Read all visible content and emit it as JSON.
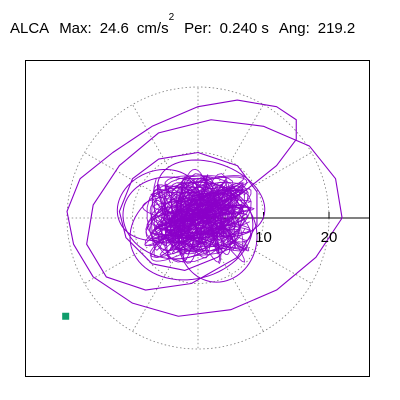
{
  "header": {
    "station": "ALCA",
    "max_label": "Max:",
    "max_value": "24.6",
    "max_unit": "cm/s",
    "max_unit_power": "2",
    "period_label": "Per:",
    "period_value": "0.240 s",
    "angle_label": "Ang:",
    "angle_value": "219.2"
  },
  "colors": {
    "trace": "#8b00c9",
    "end_marker": "#0f9d6b",
    "grid": "#7a7a7a",
    "frame": "#000000"
  },
  "chart_data": {
    "type": "scatter",
    "title": "",
    "xlabel": "",
    "ylabel": "",
    "ticks": [
      10,
      20
    ],
    "grid": "polar-rings",
    "rings": [
      10,
      20
    ],
    "radial_spokes_deg": [
      0,
      30,
      60,
      90,
      120,
      150,
      180,
      210,
      240,
      270,
      300,
      330
    ],
    "xlim": [
      -20,
      26
    ],
    "ylim": [
      -20,
      26
    ],
    "max_acceleration": 24.6,
    "period_s": 0.24,
    "angle_deg": 219.2,
    "series": [
      {
        "type": "line",
        "outer_orbit": [
          [
            0,
            0
          ],
          [
            7,
            4
          ],
          [
            12,
            8
          ],
          [
            15,
            12
          ],
          [
            15,
            15
          ],
          [
            12,
            17
          ],
          [
            6,
            18
          ],
          [
            0,
            17
          ],
          [
            -7,
            14
          ],
          [
            -13,
            10
          ],
          [
            -18,
            6
          ],
          [
            -20,
            1
          ],
          [
            -19,
            -4
          ],
          [
            -16,
            -9
          ],
          [
            -10,
            -13
          ],
          [
            -3,
            -15
          ],
          [
            5,
            -14
          ],
          [
            12,
            -11
          ],
          [
            18,
            -6
          ],
          [
            22,
            0
          ],
          [
            21,
            6
          ],
          [
            17,
            11
          ],
          [
            10,
            14
          ],
          [
            2,
            15
          ],
          [
            -6,
            13
          ],
          [
            -12,
            8
          ],
          [
            -16,
            2
          ],
          [
            -17,
            -4
          ],
          [
            -14,
            -9
          ],
          [
            -8,
            -11
          ],
          [
            -1,
            -10
          ],
          [
            6,
            -6
          ],
          [
            9,
            -1
          ],
          [
            9,
            4
          ],
          [
            6,
            8
          ],
          [
            0,
            10
          ],
          [
            -6,
            9
          ],
          [
            -10,
            6
          ],
          [
            -12,
            1
          ],
          [
            -11,
            -3
          ],
          [
            -7,
            -7
          ],
          [
            -2,
            -8
          ],
          [
            3,
            -6
          ],
          [
            6,
            -3
          ],
          [
            7,
            1
          ],
          [
            5,
            4
          ],
          [
            1,
            6
          ],
          [
            -2,
            6
          ],
          [
            -4,
            4
          ],
          [
            -4,
            1
          ],
          [
            -2,
            -1
          ]
        ],
        "dense_cluster_center": [
          0,
          0
        ],
        "dense_cluster_radius_x": 7,
        "dense_cluster_radius_y": 6
      }
    ],
    "end_point": {
      "x": -20.2,
      "y": -15.0
    }
  }
}
